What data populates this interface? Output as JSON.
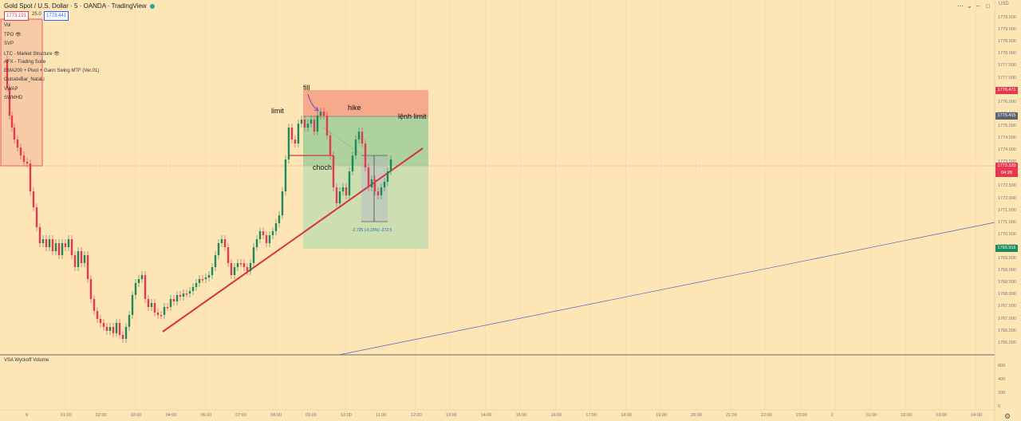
{
  "header": {
    "title": "Gold Spot / U.S. Dollar · 5 · OANDA · TradingView",
    "bid": "1773.191",
    "spread": "25.0",
    "ask": "1773.441"
  },
  "indicators": [
    "Vol",
    "TPO",
    "SVP",
    "LTC - Market Structure",
    "AFX - Trading Suite",
    "EMA200 + Pivot + Gann Swing MTF (Ver.01)",
    "OutsideBar_NataLi",
    "VWAP",
    "SWMHD"
  ],
  "annotations": {
    "fill": "fill",
    "limit": "limit",
    "hike": "hike",
    "lenh_limit": "lệnh limit",
    "choch": "choch",
    "measure": "-2.725 (-0.15%) -272.5"
  },
  "price_axis": {
    "currency": "USD",
    "ticks": [
      "1779.500",
      "1779.000",
      "1778.500",
      "1778.000",
      "1777.500",
      "1777.000",
      "1776.500",
      "1776.000",
      "1775.500",
      "1775.000",
      "1774.500",
      "1774.000",
      "1773.500",
      "1773.000",
      "1772.500",
      "1772.000",
      "1771.500",
      "1771.000",
      "1770.500",
      "1770.000",
      "1769.500",
      "1769.000",
      "1768.500",
      "1768.000",
      "1767.500",
      "1767.000",
      "1766.500",
      "1766.000"
    ],
    "tags": [
      {
        "label": "1776.471",
        "color": "#e53950",
        "price": 1776.471
      },
      {
        "label": "1775.415",
        "color": "#5d6470",
        "price": 1775.415
      },
      {
        "label": "1773.320",
        "sub": "04:28",
        "color": "#e53950",
        "price": 1773.32
      },
      {
        "label": "1769.916",
        "color": "#1b8a5a",
        "price": 1769.916
      }
    ]
  },
  "time_axis": [
    "9",
    "01:00",
    "02:00",
    "03:00",
    "04:00",
    "06:00",
    "07:00",
    "08:00",
    "09:00",
    "10:00",
    "11:00",
    "12:00",
    "13:00",
    "14:00",
    "15:00",
    "16:00",
    "17:00",
    "18:00",
    "19:00",
    "20:00",
    "21:00",
    "22:00",
    "23:00",
    "2",
    "01:00",
    "02:00",
    "03:00",
    "04:00"
  ],
  "volume_panel": {
    "title": "VSA Wyckoff Volume",
    "ticks": [
      "600",
      "400",
      "200",
      "0"
    ]
  },
  "colors": {
    "background": "#fde5b6",
    "up": "#1b8a5a",
    "down": "#e53950",
    "trendline": "#d6333f",
    "stop_zone": "#f7a98b",
    "profit_zone": "#b8d6a6"
  }
}
